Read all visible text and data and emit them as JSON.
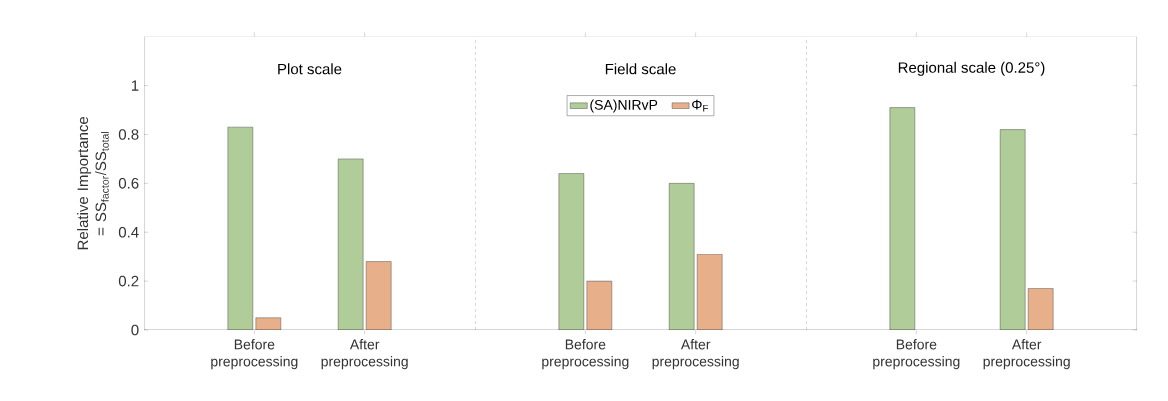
{
  "chart_data": [
    {
      "type": "bar",
      "title": "Plot scale",
      "ylabel": "Relative Importance = SS$_{factor}$/SS$_{total}$",
      "categories": [
        "Before preprocessing",
        "After preprocessing"
      ],
      "ylim": [
        0,
        1.2
      ],
      "yticks": [
        0,
        0.2,
        0.4,
        0.6,
        0.8,
        1
      ],
      "series": [
        {
          "color": "#b0cc98",
          "values": [
            0.83,
            0.7
          ]
        },
        {
          "color": "#e8b08a",
          "values": [
            0.05,
            0.28
          ]
        }
      ]
    },
    {
      "type": "bar",
      "title": "Field scale",
      "categories": [
        "Before preprocessing",
        "After preprocessing"
      ],
      "ylim": [
        0,
        1.2
      ],
      "tick_labels": "x",
      "legend": "top",
      "series": [
        {
          "name": "(SA)NIRvP",
          "color": "#b0cc98",
          "values": [
            0.64,
            0.6
          ]
        },
        {
          "name": "Φ$_{F}$",
          "color": "#e8b08a",
          "values": [
            0.2,
            0.31
          ]
        }
      ]
    },
    {
      "type": "bar",
      "title": "Regional scale (0.25°)",
      "categories": [
        "Before preprocessing",
        "After preprocessing"
      ],
      "ylim": [
        0,
        1.2
      ],
      "yticks": [
        0,
        0.2,
        0.4,
        0.6,
        0.8,
        1
      ],
      "tick_labels": "x",
      "series": [
        {
          "color": "#b0cc98",
          "values": [
            0.91,
            0.82
          ]
        },
        {
          "color": "#e8b08a",
          "values": [
            null,
            0.17
          ]
        }
      ]
    }
  ]
}
